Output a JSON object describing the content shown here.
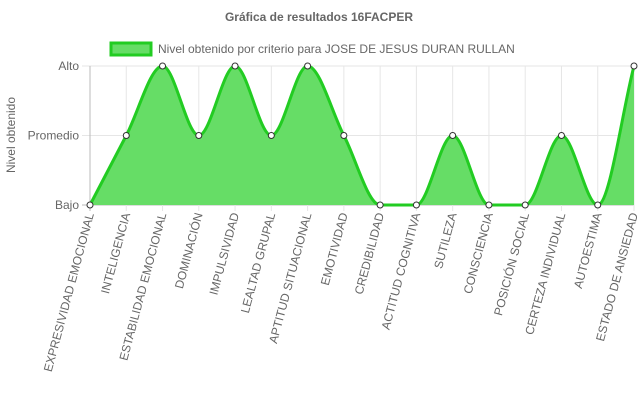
{
  "chart_data": {
    "type": "area",
    "title": "Gráfica de resultados 16FACPER",
    "ylabel": "Nivel obtenido",
    "xlabel": "",
    "y_levels": [
      "Bajo",
      "Promedio",
      "Alto"
    ],
    "ylim": [
      0,
      2
    ],
    "categories": [
      "EXPRESIVIDAD EMOCIONAL",
      "INTELIGENCIA",
      "ESTABILIDAD EMOCIONAL",
      "DOMINACIÓN",
      "IMPULSIVIDAD",
      "LEALTAD GRUPAL",
      "APTITUD SITUACIONAL",
      "EMOTIVIDAD",
      "CREDIBILIDAD",
      "ACTITUD COGNITIVA",
      "SUTILEZA",
      "CONSCIENCIA",
      "POSICIÓN SOCIAL",
      "CERTEZA INDIVIDUAL",
      "AUTOESTIMA",
      "ESTADO DE ANSIEDAD"
    ],
    "series": [
      {
        "name": "Nivel obtenido por criterio para JOSE DE JESUS DURAN RULLAN",
        "values": [
          0,
          1,
          2,
          1,
          2,
          1,
          2,
          1,
          0,
          0,
          1,
          0,
          0,
          1,
          0,
          2
        ]
      }
    ],
    "grid": true,
    "legend": "top",
    "colors": {
      "fill": "#66dd66",
      "line": "#22cc22",
      "point_fill": "#ffffff",
      "point_stroke": "#333333",
      "grid": "#e6e6e6",
      "text": "#666666"
    }
  }
}
